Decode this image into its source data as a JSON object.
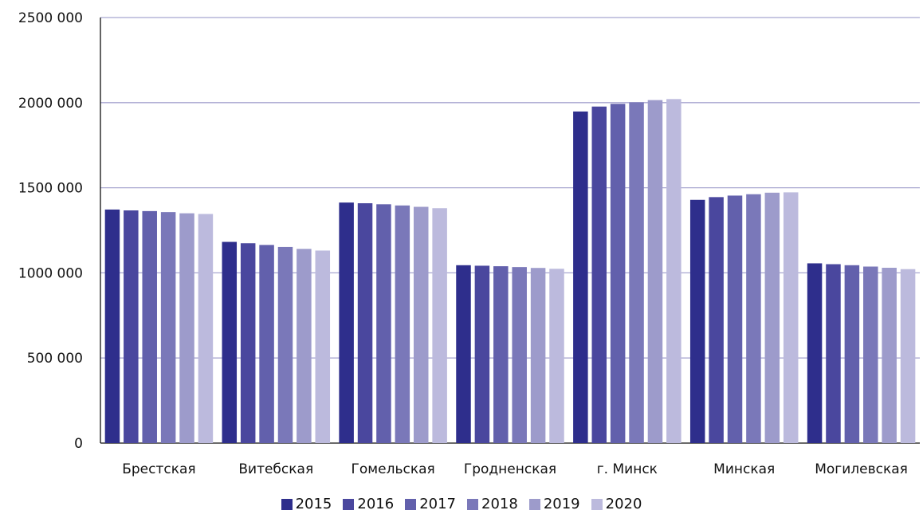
{
  "chart_data": {
    "type": "bar",
    "categories": [
      "Брестская",
      "Витебская",
      "Гомельская",
      "Гродненская",
      "г. Минск",
      "Минская",
      "Могилевская"
    ],
    "series": [
      {
        "name": "2015",
        "color": "#2e2e8c",
        "values": [
          1372000,
          1182000,
          1413000,
          1045000,
          1948000,
          1429000,
          1056000
        ]
      },
      {
        "name": "2016",
        "color": "#4a479e",
        "values": [
          1367000,
          1174000,
          1409000,
          1042000,
          1977000,
          1445000,
          1051000
        ]
      },
      {
        "name": "2017",
        "color": "#6260ac",
        "values": [
          1363000,
          1164000,
          1403000,
          1039000,
          1993000,
          1454000,
          1045000
        ]
      },
      {
        "name": "2018",
        "color": "#7a78b9",
        "values": [
          1357000,
          1152000,
          1396000,
          1034000,
          2002000,
          1462000,
          1037000
        ]
      },
      {
        "name": "2019",
        "color": "#9d9bcb",
        "values": [
          1350000,
          1141000,
          1388000,
          1029000,
          2015000,
          1471000,
          1030000
        ]
      },
      {
        "name": "2020",
        "color": "#bcbadd",
        "values": [
          1346000,
          1131000,
          1380000,
          1024000,
          2021000,
          1473000,
          1022000
        ]
      }
    ],
    "yticks": [
      "0",
      "500 000",
      "1000 000",
      "1500 000",
      "2000 000",
      "2500 000"
    ],
    "ylim": [
      0,
      2500000
    ],
    "grid": true,
    "legend_position": "bottom"
  }
}
